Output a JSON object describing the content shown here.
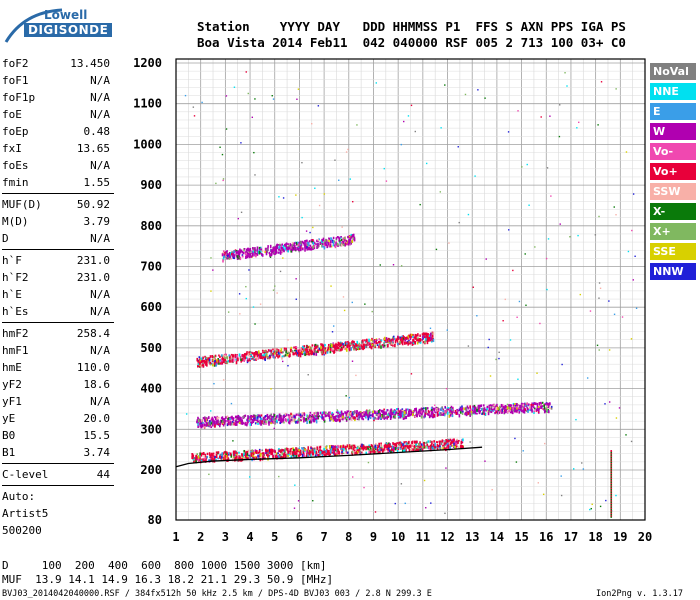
{
  "logo": {
    "line1": "Lowell",
    "line2": "DIGISONDE"
  },
  "header": {
    "labels": "Station    YYYY DAY   DDD HHMMSS P1  FFS S AXN PPS IGA PS",
    "values": "Boa Vista 2014 Feb11  042 040000 RSF 005 2 713 100 03+ C0"
  },
  "params": {
    "group1": [
      {
        "k": "foF2",
        "v": "13.450"
      },
      {
        "k": "foF1",
        "v": "N/A"
      },
      {
        "k": "foF1p",
        "v": "N/A"
      },
      {
        "k": "foE",
        "v": "N/A"
      },
      {
        "k": "foEp",
        "v": "0.48"
      },
      {
        "k": "fxI",
        "v": "13.65"
      },
      {
        "k": "foEs",
        "v": "N/A"
      },
      {
        "k": "fmin",
        "v": "1.55"
      }
    ],
    "group2": [
      {
        "k": "MUF(D)",
        "v": "50.92"
      },
      {
        "k": "M(D)",
        "v": "3.79"
      },
      {
        "k": "D",
        "v": "N/A"
      }
    ],
    "group3": [
      {
        "k": "h`F",
        "v": "231.0"
      },
      {
        "k": "h`F2",
        "v": "231.0"
      },
      {
        "k": "h`E",
        "v": "N/A"
      },
      {
        "k": "h`Es",
        "v": "N/A"
      }
    ],
    "group4": [
      {
        "k": "hmF2",
        "v": "258.4"
      },
      {
        "k": "hmF1",
        "v": "N/A"
      },
      {
        "k": "hmE",
        "v": "110.0"
      },
      {
        "k": "yF2",
        "v": "18.6"
      },
      {
        "k": "yF1",
        "v": "N/A"
      },
      {
        "k": "yE",
        "v": "20.0"
      },
      {
        "k": "B0",
        "v": "15.5"
      },
      {
        "k": "B1",
        "v": "3.74"
      }
    ],
    "clevel": {
      "k": "C-level",
      "v": "44"
    },
    "auto": [
      "Auto:",
      "Artist5",
      "500200"
    ]
  },
  "legend": [
    {
      "label": "NoVal",
      "bg": "#808080",
      "fg": "#ffffff"
    },
    {
      "label": "NNE",
      "bg": "#00e0f0",
      "fg": "#ffffff"
    },
    {
      "label": "E",
      "bg": "#3a9ee8",
      "fg": "#ffffff"
    },
    {
      "label": "W",
      "bg": "#b000b0",
      "fg": "#ffffff"
    },
    {
      "label": "Vo-",
      "bg": "#f048b0",
      "fg": "#ffffff"
    },
    {
      "label": "Vo+",
      "bg": "#e8003a",
      "fg": "#ffffff"
    },
    {
      "label": "SSW",
      "bg": "#f8b0a8",
      "fg": "#ffffff"
    },
    {
      "label": "X-",
      "bg": "#0a7a0a",
      "fg": "#ffffff"
    },
    {
      "label": "X+",
      "bg": "#80b860",
      "fg": "#ffffff"
    },
    {
      "label": "SSE",
      "bg": "#d8d000",
      "fg": "#ffffff"
    },
    {
      "label": "NNW",
      "bg": "#2020d8",
      "fg": "#ffffff"
    }
  ],
  "footer": {
    "d_line": "D     100  200  400  600  800 1000 1500 3000 [km]",
    "muf_line": "MUF  13.9 14.1 14.9 16.3 18.2 21.1 29.3 50.9 [MHz]",
    "file_line": "BVJ03_2014042040000.RSF / 384fx512h 50 kHz 2.5 km / DPS-4D BVJ03 003 / 2.8 N 299.3 E",
    "version": "Ion2Png v. 1.3.17"
  },
  "chart_data": {
    "type": "scatter",
    "x_ticks": [
      "1",
      "2",
      "3",
      "4",
      "5",
      "6",
      "7",
      "8",
      "9",
      "10",
      "11",
      "12",
      "13",
      "14",
      "15",
      "16",
      "17",
      "18",
      "19",
      "20"
    ],
    "y_ticks": [
      "80",
      "200",
      "300",
      "400",
      "500",
      "600",
      "700",
      "800",
      "900",
      "1000",
      "1100",
      "1200"
    ],
    "xlim": [
      1,
      20
    ],
    "ylim": [
      80,
      1200
    ],
    "traces": [
      {
        "name": "F2 trace",
        "color": "#e8003a",
        "x_start": 1.6,
        "x_end": 12.6,
        "h_start": 232,
        "h_end": 268
      },
      {
        "name": "F2 trace",
        "color": "#b000b0",
        "x_start": 1.8,
        "x_end": 16.2,
        "h_start": 320,
        "h_end": 358
      },
      {
        "name": "2F trace",
        "color": "#e8003a",
        "x_start": 1.8,
        "x_end": 11.4,
        "h_start": 468,
        "h_end": 530
      },
      {
        "name": "3F trace",
        "color": "#b000b0",
        "x_start": 2.8,
        "x_end": 8.2,
        "h_start": 728,
        "h_end": 770
      }
    ],
    "fitted_profile": [
      [
        1.0,
        208
      ],
      [
        1.5,
        216
      ],
      [
        2.5,
        222
      ],
      [
        4,
        226
      ],
      [
        6,
        230
      ],
      [
        8,
        236
      ],
      [
        10,
        243
      ],
      [
        12,
        250
      ],
      [
        13.4,
        256
      ]
    ]
  }
}
